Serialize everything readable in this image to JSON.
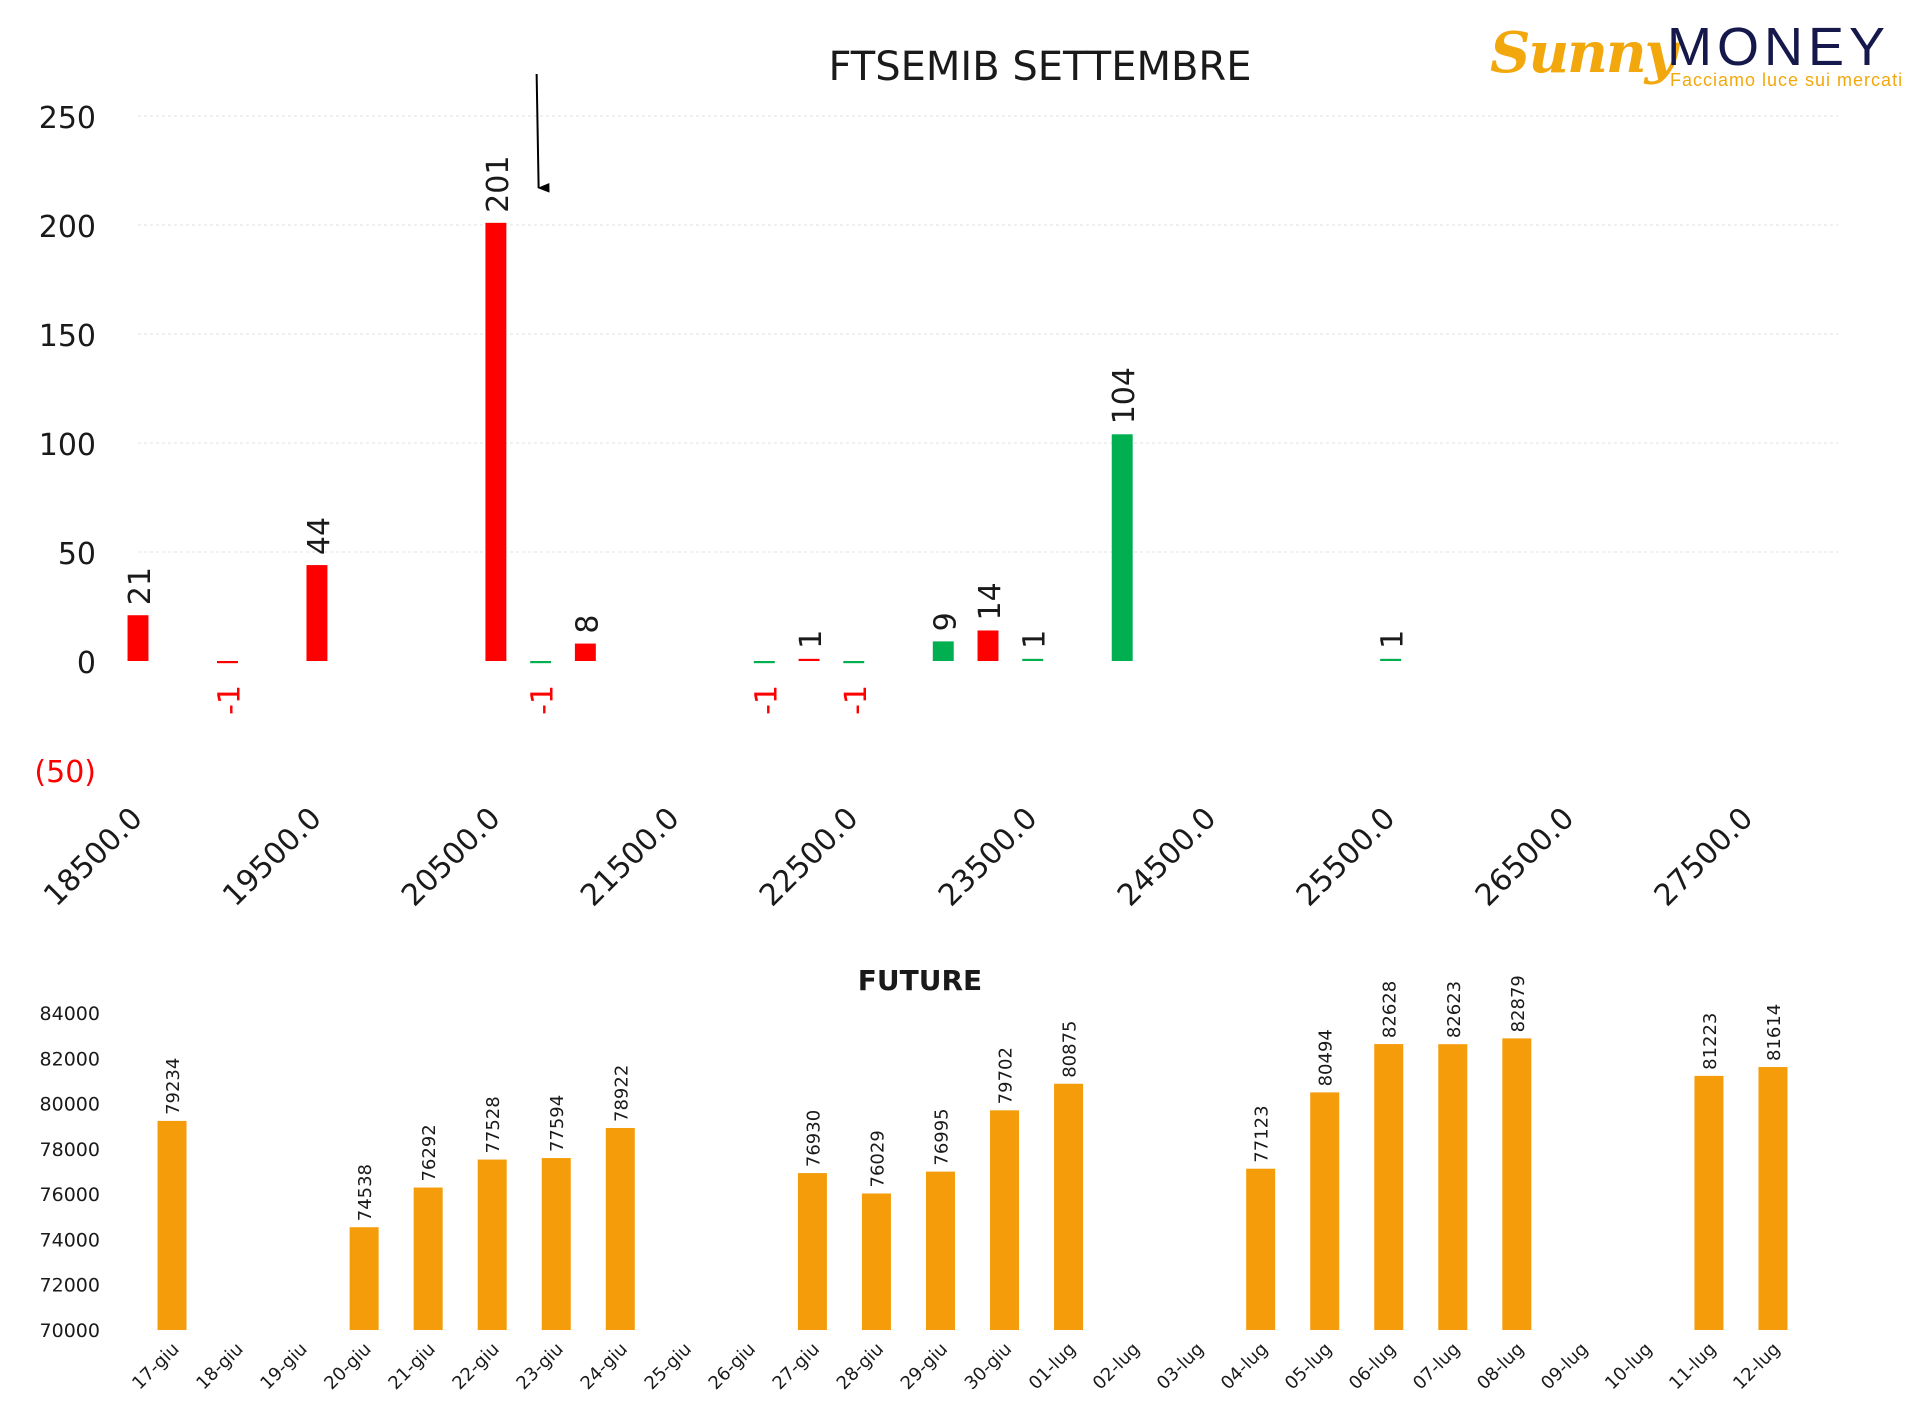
{
  "logo": {
    "word1": "Sunny",
    "word2": "MONEY",
    "tagline": "Facciamo luce sui mercati",
    "colors": {
      "primary": "#f2a80c",
      "secondary": "#15184a"
    }
  },
  "chart_data": [
    {
      "type": "bar",
      "title": "FTSEMIB SETTEMBRE",
      "x_tick_labels": [
        "18500.0",
        "19500.0",
        "20500.0",
        "21500.0",
        "22500.0",
        "23500.0",
        "24500.0",
        "25500.0",
        "26500.0",
        "27500.0"
      ],
      "y_tick_labels": [
        "250",
        "200",
        "150",
        "100",
        "50",
        "0",
        "(50)"
      ],
      "ylim": [
        -50,
        250
      ],
      "xlim": [
        18500,
        28000
      ],
      "grid": "horizontal",
      "bars": [
        {
          "x": 18500,
          "value": 21,
          "label": "21",
          "color": "red"
        },
        {
          "x": 19000,
          "value": -1,
          "label": "-1",
          "color": "red"
        },
        {
          "x": 19500,
          "value": 44,
          "label": "44",
          "color": "red"
        },
        {
          "x": 20500,
          "value": 201,
          "label": "201",
          "color": "red"
        },
        {
          "x": 20750,
          "value": -1,
          "label": "-1",
          "color": "green"
        },
        {
          "x": 21000,
          "value": 8,
          "label": "8",
          "color": "red"
        },
        {
          "x": 22000,
          "value": -1,
          "label": "-1",
          "color": "green"
        },
        {
          "x": 22250,
          "value": 1,
          "label": "1",
          "color": "red"
        },
        {
          "x": 22500,
          "value": -1,
          "label": "-1",
          "color": "green"
        },
        {
          "x": 23000,
          "value": 9,
          "label": "9",
          "color": "green"
        },
        {
          "x": 23250,
          "value": 14,
          "label": "14",
          "color": "red"
        },
        {
          "x": 23500,
          "value": 1,
          "label": "1",
          "color": "green"
        },
        {
          "x": 24000,
          "value": 104,
          "label": "104",
          "color": "green"
        },
        {
          "x": 25500,
          "value": 1,
          "label": "1",
          "color": "green"
        }
      ],
      "annotation": {
        "type": "arrow",
        "x": 20750,
        "points_to": "201"
      },
      "colors": {
        "red": "#ff0000",
        "green": "#00b050",
        "negative_tick": "#ff0000"
      }
    },
    {
      "type": "bar",
      "title": "FUTURE",
      "categories": [
        "17-giu",
        "18-giu",
        "19-giu",
        "20-giu",
        "21-giu",
        "22-giu",
        "23-giu",
        "24-giu",
        "25-giu",
        "26-giu",
        "27-giu",
        "28-giu",
        "29-giu",
        "30-giu",
        "01-lug",
        "02-lug",
        "03-lug",
        "04-lug",
        "05-lug",
        "06-lug",
        "07-lug",
        "08-lug",
        "09-lug",
        "10-lug",
        "11-lug",
        "12-lug"
      ],
      "values": [
        79234,
        null,
        null,
        74538,
        76292,
        77528,
        77594,
        78922,
        null,
        null,
        76930,
        76029,
        76995,
        79702,
        80875,
        null,
        null,
        77123,
        80494,
        82628,
        82623,
        82879,
        null,
        null,
        81223,
        81614
      ],
      "y_tick_labels": [
        "84000",
        "82000",
        "80000",
        "78000",
        "76000",
        "74000",
        "72000",
        "70000"
      ],
      "ylim": [
        70000,
        84000
      ],
      "grid": "none",
      "colors": {
        "bar": "#f59c0a"
      }
    }
  ]
}
